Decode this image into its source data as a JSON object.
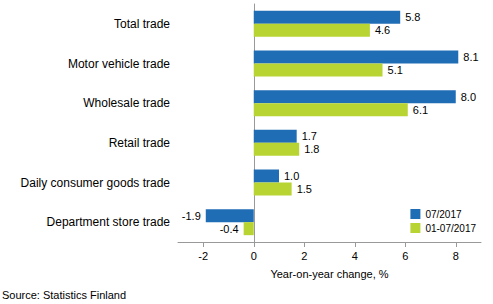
{
  "chart_data": {
    "type": "bar",
    "orientation": "horizontal",
    "categories": [
      "Total trade",
      "Motor vehicle trade",
      "Wholesale trade",
      "Retail trade",
      "Daily consumer goods trade",
      "Department store trade"
    ],
    "series": [
      {
        "name": "07/2017",
        "color": "#1f6db5",
        "values": [
          5.8,
          8.1,
          8.0,
          1.7,
          1.0,
          -1.9
        ],
        "value_labels": [
          "5.8",
          "8.1",
          "8.0",
          "1.7",
          "1.0",
          "-1.9"
        ]
      },
      {
        "name": "01-07/2017",
        "color": "#b8d433",
        "values": [
          4.6,
          5.1,
          6.1,
          1.8,
          1.5,
          -0.4
        ],
        "value_labels": [
          "4.6",
          "5.1",
          "6.1",
          "1.8",
          "1.5",
          "-0.4"
        ]
      }
    ],
    "x_label": "Year-on-year change, %",
    "source": "Source: Statistics Finland",
    "xlim": [
      -3,
      9
    ],
    "xticks": [
      -2,
      0,
      2,
      4,
      6,
      8
    ],
    "data_labels": true,
    "grid": false,
    "legend": "lower right"
  }
}
